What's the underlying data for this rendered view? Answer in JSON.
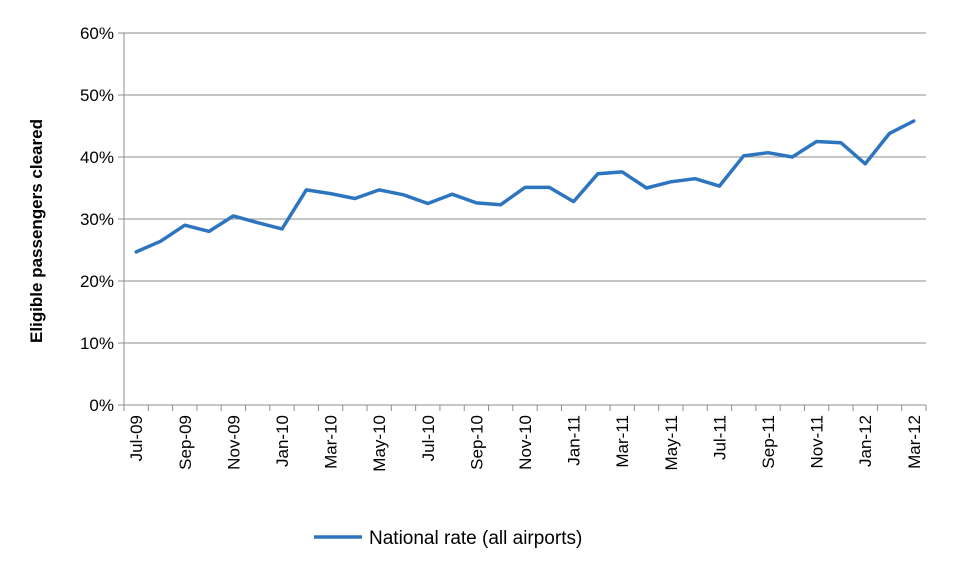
{
  "chart_data": {
    "type": "line",
    "title": "",
    "xlabel": "",
    "ylabel": "Eligible passengers cleared",
    "ylim": [
      0,
      60
    ],
    "y_tick_step": 10,
    "y_tick_labels": [
      "0%",
      "10%",
      "20%",
      "30%",
      "40%",
      "50%",
      "60%"
    ],
    "x": [
      "Jul-09",
      "Aug-09",
      "Sep-09",
      "Oct-09",
      "Nov-09",
      "Dec-09",
      "Jan-10",
      "Feb-10",
      "Mar-10",
      "Apr-10",
      "May-10",
      "Jun-10",
      "Jul-10",
      "Aug-10",
      "Sep-10",
      "Oct-10",
      "Nov-10",
      "Dec-10",
      "Jan-11",
      "Feb-11",
      "Mar-11",
      "Apr-11",
      "May-11",
      "Jun-11",
      "Jul-11",
      "Aug-11",
      "Sep-11",
      "Oct-11",
      "Nov-11",
      "Dec-11",
      "Jan-12",
      "Feb-12",
      "Mar-12"
    ],
    "x_tick_labels": [
      "Jul-09",
      "Sep-09",
      "Nov-09",
      "Jan-10",
      "Mar-10",
      "May-10",
      "Jul-10",
      "Sep-10",
      "Nov-10",
      "Jan-11",
      "Mar-11",
      "May-11",
      "Jul-11",
      "Sep-11",
      "Nov-11",
      "Jan-12",
      "Mar-12"
    ],
    "series": [
      {
        "name": "National rate  (all airports)",
        "color": "#2e75c0",
        "values": [
          24.7,
          26.4,
          29.0,
          28.0,
          30.5,
          29.4,
          28.4,
          34.7,
          34.1,
          33.3,
          34.7,
          33.9,
          32.5,
          34.0,
          32.6,
          32.3,
          35.1,
          35.1,
          32.8,
          37.3,
          37.6,
          35.0,
          36.0,
          36.5,
          35.3,
          40.2,
          40.7,
          40.0,
          42.5,
          42.3,
          38.9,
          43.8,
          45.8
        ]
      }
    ],
    "grid": true,
    "legend_position": "bottom-center"
  }
}
